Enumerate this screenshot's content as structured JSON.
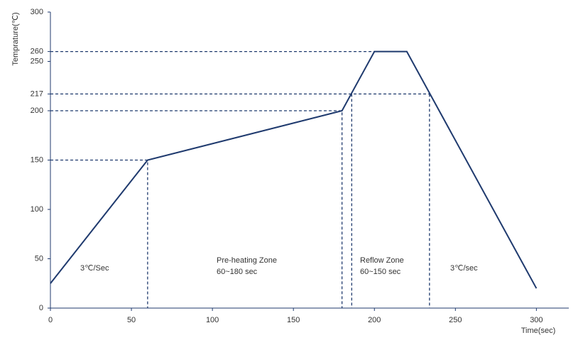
{
  "chart_data": {
    "type": "line",
    "x_label": "Time(sec)",
    "y_label": "Temprature(℃)",
    "x": [
      0,
      60,
      180,
      200,
      220,
      300
    ],
    "series": [
      {
        "color": "#1f3a6e",
        "values": [
          25,
          150,
          200,
          260,
          260,
          20
        ]
      }
    ],
    "xlim": [
      0,
      320
    ],
    "ylim": [
      0,
      300
    ],
    "xticks": [
      0,
      50,
      100,
      150,
      200,
      250,
      300
    ],
    "yticks": [
      0,
      50,
      100,
      150,
      200,
      217,
      250,
      260,
      300
    ],
    "guides": [
      {
        "x": [
          0,
          60,
          60
        ],
        "y": [
          150,
          150,
          0
        ]
      },
      {
        "x": [
          0,
          180,
          180
        ],
        "y": [
          200,
          200,
          0
        ]
      },
      {
        "x": [
          0,
          234
        ],
        "y": [
          217,
          217
        ]
      },
      {
        "x": [
          186,
          186
        ],
        "y": [
          217,
          0
        ]
      },
      {
        "x": [
          234,
          234
        ],
        "y": [
          217,
          0
        ]
      },
      {
        "x": [
          0,
          200
        ],
        "y": [
          260,
          260
        ]
      }
    ],
    "guide_color": "#1f3a6e",
    "annotations": [
      [
        "3℃/Sec"
      ],
      [
        "Pre-heating Zone",
        "60~180 sec"
      ],
      [
        "Reflow Zone",
        "60~150 sec"
      ],
      [
        "3℃/sec"
      ]
    ]
  }
}
